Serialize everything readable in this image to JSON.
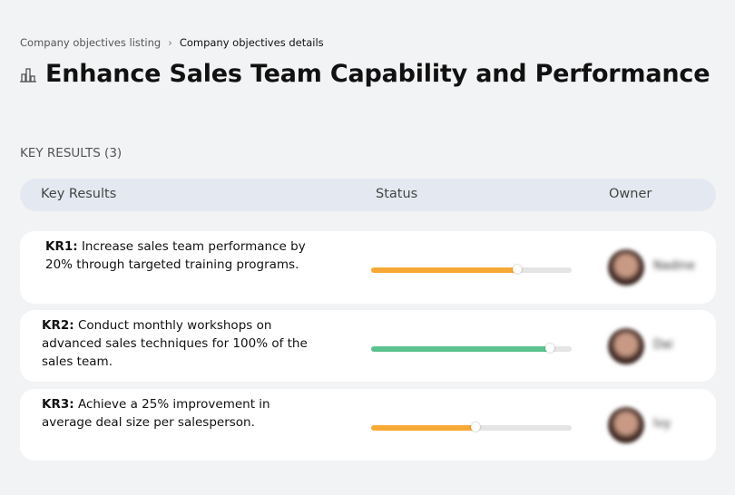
{
  "breadcrumb": [
    "Company objectives listing",
    "Company objectives details"
  ],
  "title": "Enhance Sales Team Capability and Performance",
  "section": "KEY RESULTS (3)",
  "table": {
    "headers": [
      "Key Results",
      "Status",
      "Owner"
    ],
    "rows": [
      {
        "label": "KR1:",
        "text": "Increase sales team performance by 20% through targeted training programs.",
        "progress": 73,
        "color": "#f7a935",
        "owner": "Nadine"
      },
      {
        "label": "KR2:",
        "text": "Conduct monthly workshops on advanced sales techniques for 100% of the sales team.",
        "progress": 89,
        "color": "#5cc28f",
        "owner": "Dai"
      },
      {
        "label": "KR3:",
        "text": "Achieve a 25% improvement in average deal size per salesperson.",
        "progress": 52,
        "color": "#f7a935",
        "owner": "Ivy"
      }
    ]
  }
}
